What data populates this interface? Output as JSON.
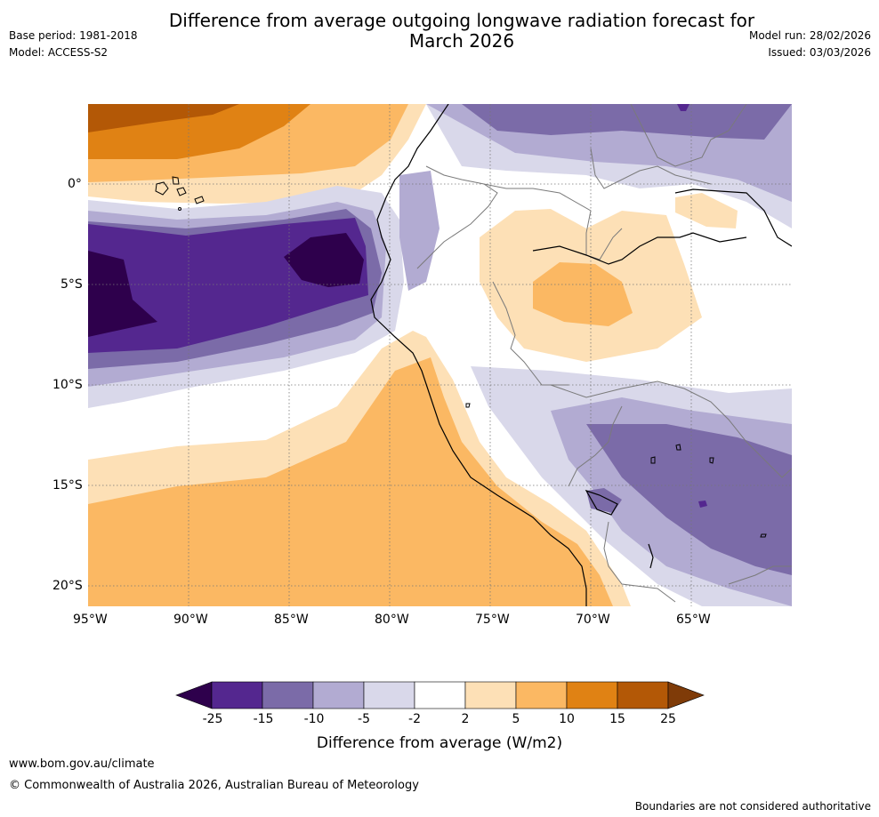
{
  "header": {
    "title_line1": "Difference from average outgoing longwave radiation forecast for",
    "title_line2": "March 2026",
    "base_period": "Base period: 1981-2018",
    "model": "Model: ACCESS-S2",
    "model_run": "Model run: 28/02/2026",
    "issued": "Issued: 03/03/2026"
  },
  "map": {
    "lat_labels": [
      "0°",
      "5°S",
      "10°S",
      "15°S",
      "20°S"
    ],
    "lon_labels": [
      "95°W",
      "90°W",
      "85°W",
      "80°W",
      "75°W",
      "70°W",
      "65°W"
    ]
  },
  "legend": {
    "title": "Difference from average (W/m2)",
    "ticks": [
      "-25",
      "-15",
      "-10",
      "-5",
      "-2",
      "2",
      "5",
      "10",
      "15",
      "25"
    ],
    "colors": {
      "min_arrow": "#2e004c",
      "m25_15": "#54278f",
      "m15_10": "#7b6ba8",
      "m10_5": "#b2abd2",
      "m5_2": "#d9d8ea",
      "neutral": "#ffffff",
      "p2_5": "#fde0b6",
      "p5_10": "#fbb863",
      "p10_15": "#e08214",
      "p15_25": "#b35806",
      "max_arrow": "#7f3b08"
    }
  },
  "footer": {
    "website": "www.bom.gov.au/climate",
    "copyright": "© Commonwealth of Australia 2026, Australian Bureau of Meteorology",
    "disclaimer": "Boundaries are not considered authoritative"
  }
}
